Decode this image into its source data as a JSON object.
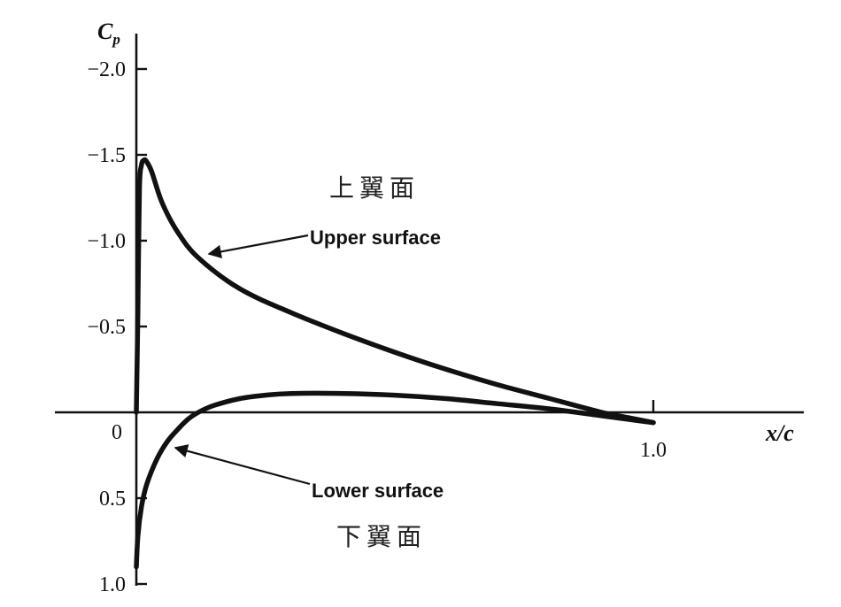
{
  "chart_data": {
    "type": "line",
    "xlabel": "x/c",
    "ylabel": {
      "main": "C",
      "sub": "p"
    },
    "xlim": [
      0,
      1.0
    ],
    "ylim": [
      1.0,
      -2.0
    ],
    "y_inverted": true,
    "grid": false,
    "x_ticks": [
      {
        "value": 1.0,
        "label": "1.0"
      }
    ],
    "y_ticks": [
      {
        "value": -2.0,
        "label": "−2.0"
      },
      {
        "value": -1.5,
        "label": "−1.5"
      },
      {
        "value": -1.0,
        "label": "−1.0"
      },
      {
        "value": -0.5,
        "label": "−0.5"
      },
      {
        "value": 0,
        "label": "0"
      },
      {
        "value": 0.5,
        "label": "0.5"
      },
      {
        "value": 1.0,
        "label": "1.0"
      }
    ],
    "series": [
      {
        "name": "Upper surface",
        "x": [
          0,
          0.003,
          0.006,
          0.01,
          0.015,
          0.02,
          0.03,
          0.05,
          0.08,
          0.12,
          0.2,
          0.3,
          0.4,
          0.5,
          0.6,
          0.7,
          0.8,
          0.9,
          0.95,
          1.0
        ],
        "y": [
          0,
          -0.6,
          -1.3,
          -1.44,
          -1.47,
          -1.46,
          -1.4,
          -1.22,
          -1.05,
          -0.9,
          -0.72,
          -0.58,
          -0.46,
          -0.35,
          -0.25,
          -0.16,
          -0.08,
          0.0,
          0.03,
          0.06
        ]
      },
      {
        "name": "Lower surface",
        "x": [
          0,
          0.003,
          0.01,
          0.02,
          0.04,
          0.06,
          0.08,
          0.1,
          0.12,
          0.15,
          0.2,
          0.25,
          0.3,
          0.4,
          0.5,
          0.6,
          0.7,
          0.8,
          0.9,
          0.95,
          1.0
        ],
        "y": [
          0.9,
          0.72,
          0.55,
          0.42,
          0.27,
          0.17,
          0.1,
          0.04,
          0.0,
          -0.04,
          -0.08,
          -0.1,
          -0.11,
          -0.11,
          -0.1,
          -0.08,
          -0.05,
          -0.02,
          0.02,
          0.04,
          0.06
        ]
      }
    ],
    "annotations": [
      {
        "id": "upper-zh",
        "text": "上翼面"
      },
      {
        "id": "upper-en",
        "text": "Upper surface"
      },
      {
        "id": "lower-en",
        "text": "Lower surface"
      },
      {
        "id": "lower-zh",
        "text": "下翼面"
      }
    ]
  }
}
